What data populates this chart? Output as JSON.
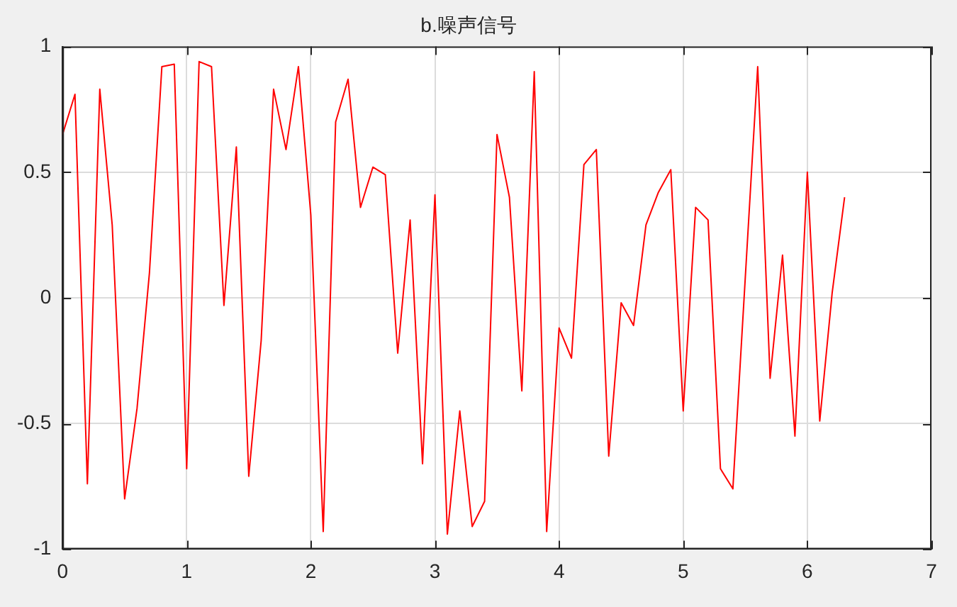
{
  "chart_data": {
    "type": "line",
    "title": "b.噪声信号",
    "x": [
      0,
      0.1,
      0.2,
      0.3,
      0.4,
      0.5,
      0.6,
      0.7,
      0.8,
      0.9,
      1,
      1.1,
      1.2,
      1.3,
      1.4,
      1.5,
      1.6,
      1.7,
      1.8,
      1.9,
      2,
      2.1,
      2.2,
      2.3,
      2.4,
      2.5,
      2.6,
      2.7,
      2.8,
      2.9,
      3,
      3.1,
      3.2,
      3.3,
      3.4,
      3.5,
      3.6,
      3.7,
      3.8,
      3.9,
      4,
      4.1,
      4.2,
      4.3,
      4.4,
      4.5,
      4.6,
      4.7,
      4.8,
      4.9,
      5,
      5.1,
      5.2,
      5.3,
      5.4,
      5.5,
      5.6,
      5.7,
      5.8,
      5.9,
      6,
      6.1,
      6.2,
      6.3
    ],
    "series": [
      {
        "color": "#ff0000",
        "values": [
          0.65,
          0.81,
          -0.74,
          0.83,
          0.29,
          -0.8,
          -0.44,
          0.1,
          0.92,
          0.93,
          -0.68,
          0.94,
          0.92,
          -0.03,
          0.6,
          -0.71,
          -0.17,
          0.83,
          0.59,
          0.92,
          0.33,
          -0.93,
          0.7,
          0.87,
          0.36,
          0.52,
          0.49,
          -0.22,
          0.31,
          -0.66,
          0.41,
          -0.94,
          -0.45,
          -0.91,
          -0.81,
          0.65,
          0.4,
          -0.37,
          0.9,
          -0.93,
          -0.12,
          -0.24,
          0.53,
          0.59,
          -0.63,
          -0.02,
          -0.11,
          0.29,
          0.42,
          0.51,
          -0.45,
          0.36,
          0.31,
          -0.68,
          -0.76,
          0.08,
          0.92,
          -0.32,
          0.17,
          -0.55,
          0.5,
          -0.49,
          0.02,
          0.4
        ]
      }
    ],
    "xlim": [
      0,
      7
    ],
    "xticks": [
      0,
      1,
      2,
      3,
      4,
      5,
      6,
      7
    ],
    "ylim": [
      -1,
      1
    ],
    "yticks": [
      -1,
      -0.5,
      0,
      0.5,
      1
    ],
    "grid": true,
    "marker": "none",
    "line_style": "solid",
    "legend": false
  }
}
